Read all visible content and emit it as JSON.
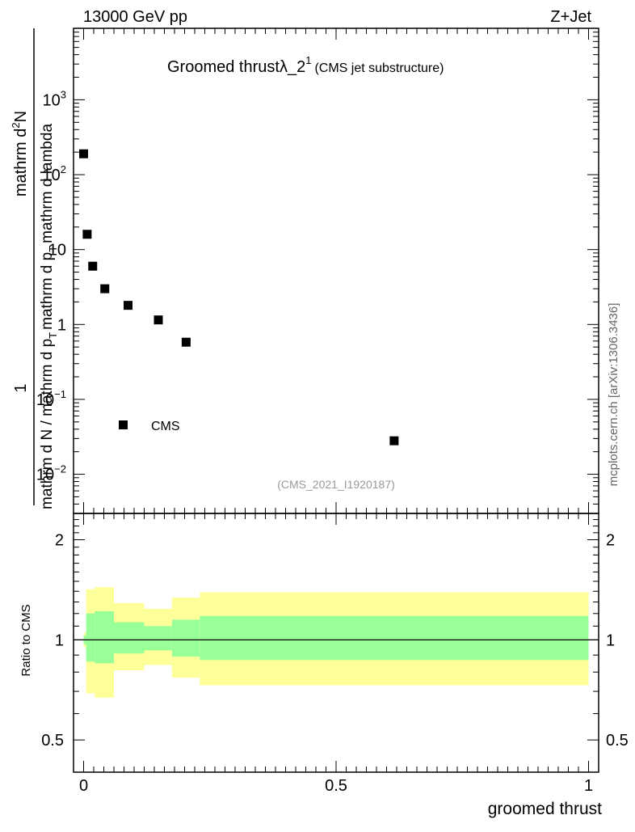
{
  "header": {
    "left": "13000 GeV pp",
    "right": "Z+Jet"
  },
  "watermark": "mcplots.cern.ch [arXiv:1306.3436]",
  "chart_data": [
    {
      "type": "scatter",
      "title": "Groomed thrustλ_2",
      "title_superscript": "1",
      "subtitle": "(CMS jet substructure)",
      "analysis_tag": "(CMS_2021_I1920187)",
      "ylabel": {
        "prefix": "1",
        "numerator": "mathrm d",
        "numerator_sup": "2",
        "numerator_tail": "N",
        "denominator": "mathrm d N / mathrm d p",
        "denominator_sub": "T",
        "denominator_mid": "mathrm d p",
        "denominator_sub2": "T",
        "denominator_tail": "mathrm d lambda"
      },
      "y_scale": "log",
      "ylim": [
        0.003,
        9000
      ],
      "xlim": [
        -0.02,
        1.02
      ],
      "y_ticks": [
        {
          "value": 0.01,
          "base": "10",
          "exp": "−2"
        },
        {
          "value": 0.1,
          "base": "10",
          "exp": "−1"
        },
        {
          "value": 1,
          "base": "1",
          "exp": ""
        },
        {
          "value": 10,
          "base": "10",
          "exp": ""
        },
        {
          "value": 100,
          "base": "10",
          "exp": "2"
        },
        {
          "value": 1000,
          "base": "10",
          "exp": "3"
        }
      ],
      "legend": {
        "entries": [
          "CMS"
        ],
        "placement": "bottom-left"
      },
      "series": [
        {
          "name": "CMS",
          "color": "#000000",
          "x": [
            0.0,
            0.007,
            0.018,
            0.042,
            0.088,
            0.148,
            0.203,
            0.615
          ],
          "y": [
            190,
            16,
            6,
            3,
            1.8,
            1.15,
            0.58,
            0.028
          ]
        }
      ]
    },
    {
      "type": "area",
      "ylabel": "Ratio to CMS",
      "xlabel": "groomed thrust",
      "y_scale": "log",
      "ylim": [
        0.4,
        2.4
      ],
      "xlim": [
        -0.02,
        1.02
      ],
      "x_ticks": [
        {
          "value": 0,
          "label": "0"
        },
        {
          "value": 0.5,
          "label": "0.5"
        },
        {
          "value": 1,
          "label": "1"
        }
      ],
      "y_ticks": [
        {
          "value": 0.5,
          "label": "0.5"
        },
        {
          "value": 1,
          "label": "1"
        },
        {
          "value": 2,
          "label": "2"
        }
      ],
      "reference_line": 1,
      "colors": {
        "outer_band": "#ffff99",
        "inner_band": "#99ff99"
      },
      "bands": [
        {
          "x0": 0.0,
          "x1": 0.005,
          "inner": [
            0.97,
            1.03
          ],
          "outer": [
            0.95,
            1.05
          ]
        },
        {
          "x0": 0.005,
          "x1": 0.022,
          "inner": [
            0.86,
            1.2
          ],
          "outer": [
            0.69,
            1.42
          ]
        },
        {
          "x0": 0.022,
          "x1": 0.06,
          "inner": [
            0.85,
            1.22
          ],
          "outer": [
            0.67,
            1.44
          ]
        },
        {
          "x0": 0.06,
          "x1": 0.12,
          "inner": [
            0.91,
            1.13
          ],
          "outer": [
            0.81,
            1.29
          ]
        },
        {
          "x0": 0.12,
          "x1": 0.175,
          "inner": [
            0.93,
            1.1
          ],
          "outer": [
            0.84,
            1.24
          ]
        },
        {
          "x0": 0.175,
          "x1": 0.23,
          "inner": [
            0.89,
            1.15
          ],
          "outer": [
            0.77,
            1.34
          ]
        },
        {
          "x0": 0.23,
          "x1": 1.0,
          "inner": [
            0.87,
            1.18
          ],
          "outer": [
            0.73,
            1.39
          ]
        }
      ]
    }
  ]
}
